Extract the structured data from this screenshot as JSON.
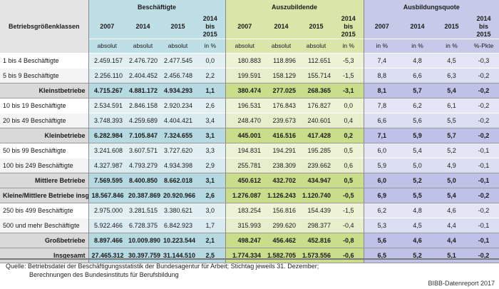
{
  "header": {
    "row_label": "Betriebsgrößenklassen",
    "groups": [
      "Beschäftigte",
      "Auszubildende",
      "Ausbildungsquote"
    ],
    "years": [
      "2007",
      "2014",
      "2015",
      "2014 bis 2015"
    ],
    "units": {
      "g1": [
        "absolut",
        "absolut",
        "absolut",
        "in %"
      ],
      "g2": [
        "absolut",
        "absolut",
        "absolut",
        "in %"
      ],
      "g3": [
        "in %",
        "in %",
        "in %",
        "%-Pkte"
      ]
    }
  },
  "rows": [
    {
      "label": "1 bis 4 Beschäftigte",
      "type": "row",
      "alt": false,
      "v": [
        "2.459.157",
        "2.476.720",
        "2.477.545",
        "0,0",
        "180.883",
        "118.896",
        "112.651",
        "-5,3",
        "7,4",
        "4,8",
        "4,5",
        "-0,3"
      ]
    },
    {
      "label": "5 bis 9 Beschäftigte",
      "type": "row",
      "alt": true,
      "v": [
        "2.256.110",
        "2.404.452",
        "2.456.748",
        "2,2",
        "199.591",
        "158.129",
        "155.714",
        "-1,5",
        "8,8",
        "6,6",
        "6,3",
        "-0,2"
      ]
    },
    {
      "label": "Kleinstbetriebe",
      "type": "sum",
      "alt": false,
      "v": [
        "4.715.267",
        "4.881.172",
        "4.934.293",
        "1,1",
        "380.474",
        "277.025",
        "268.365",
        "-3,1",
        "8,1",
        "5,7",
        "5,4",
        "-0,2"
      ]
    },
    {
      "label": "10 bis 19 Beschäftigte",
      "type": "row",
      "alt": false,
      "v": [
        "2.534.591",
        "2.846.158",
        "2.920.234",
        "2,6",
        "196.531",
        "176.843",
        "176.827",
        "0,0",
        "7,8",
        "6,2",
        "6,1",
        "-0,2"
      ]
    },
    {
      "label": "20 bis 49 Beschäftigte",
      "type": "row",
      "alt": true,
      "v": [
        "3.748.393",
        "4.259.689",
        "4.404.421",
        "3,4",
        "248.470",
        "239.673",
        "240.601",
        "0,4",
        "6,6",
        "5,6",
        "5,5",
        "-0,2"
      ]
    },
    {
      "label": "Kleinbetriebe",
      "type": "sum",
      "alt": false,
      "v": [
        "6.282.984",
        "7.105.847",
        "7.324.655",
        "3,1",
        "445.001",
        "416.516",
        "417.428",
        "0,2",
        "7,1",
        "5,9",
        "5,7",
        "-0,2"
      ]
    },
    {
      "label": "50 bis 99 Beschäftigte",
      "type": "row",
      "alt": false,
      "v": [
        "3.241.608",
        "3.607.571",
        "3.727.620",
        "3,3",
        "194.831",
        "194.291",
        "195.285",
        "0,5",
        "6,0",
        "5,4",
        "5,2",
        "-0,1"
      ]
    },
    {
      "label": "100 bis 249 Beschäftigte",
      "type": "row",
      "alt": true,
      "v": [
        "4.327.987",
        "4.793.279",
        "4.934.398",
        "2,9",
        "255.781",
        "238.309",
        "239.662",
        "0,6",
        "5,9",
        "5,0",
        "4,9",
        "-0,1"
      ]
    },
    {
      "label": "Mittlere Betriebe",
      "type": "sum",
      "alt": false,
      "v": [
        "7.569.595",
        "8.400.850",
        "8.662.018",
        "3,1",
        "450.612",
        "432.702",
        "434.947",
        "0,5",
        "6,0",
        "5,2",
        "5,0",
        "-0,1"
      ]
    },
    {
      "label": "Kleine/Mittlere Betriebe insg.",
      "type": "sum",
      "alt": false,
      "v": [
        "18.567.846",
        "20.387.869",
        "20.920.966",
        "2,6",
        "1.276.087",
        "1.126.243",
        "1.120.740",
        "-0,5",
        "6,9",
        "5,5",
        "5,4",
        "-0,2"
      ]
    },
    {
      "label": "250 bis 499 Beschäftigte",
      "type": "row",
      "alt": false,
      "v": [
        "2.975.000",
        "3.281.515",
        "3.380.621",
        "3,0",
        "183.254",
        "156.816",
        "154.439",
        "-1,5",
        "6,2",
        "4,8",
        "4,6",
        "-0,2"
      ]
    },
    {
      "label": "500 und mehr Beschäftigte",
      "type": "row",
      "alt": true,
      "v": [
        "5.922.466",
        "6.728.375",
        "6.842.923",
        "1,7",
        "315.993",
        "299.620",
        "298.377",
        "-0,4",
        "5,3",
        "4,5",
        "4,4",
        "-0,1"
      ]
    },
    {
      "label": "Großbetriebe",
      "type": "sum",
      "alt": false,
      "v": [
        "8.897.466",
        "10.009.890",
        "10.223.544",
        "2,1",
        "498.247",
        "456.462",
        "452.816",
        "-0,8",
        "5,6",
        "4,6",
        "4,4",
        "-0,1"
      ]
    },
    {
      "label": "Insgesamt",
      "type": "sum",
      "alt": false,
      "v": [
        "27.465.312",
        "30.397.759",
        "31.144.510",
        "2,5",
        "1.774.334",
        "1.582.705",
        "1.573.556",
        "-0,6",
        "6,5",
        "5,2",
        "5,1",
        "-0,2"
      ]
    }
  ],
  "footer": {
    "source_lines": [
      "Quelle: Betriebsdatei der Beschäftigungsstatistik der Bundesagentur für Arbeit; Stichtag jeweils 31. Dezember;",
      "Berechnungen des Bundesinstituts für Berufsbildung"
    ],
    "credit": "BIBB-Datenreport 2017"
  }
}
